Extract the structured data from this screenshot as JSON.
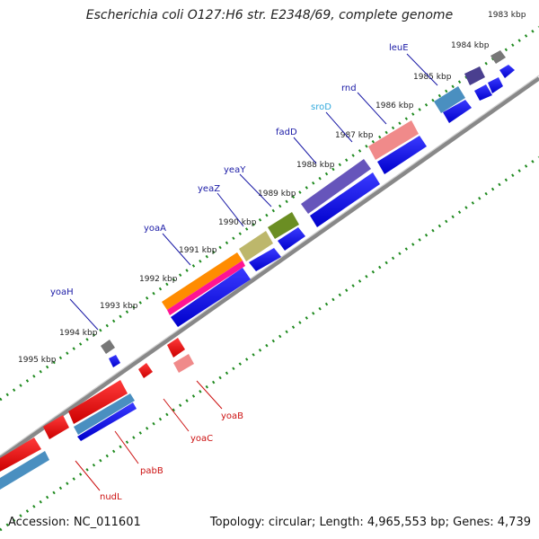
{
  "title": "Escherichia coli O127:H6 str. E2348/69, complete genome",
  "footer": {
    "accession": "Accession: NC_011601",
    "summary": "Topology: circular; Length: 4,965,553 bp; Genes: 4,739"
  },
  "colors": {
    "backbone": "#888888",
    "ticks": "#1f8a1f",
    "forward_label": "#1a1aa6",
    "reverse_label": "#cc1111",
    "srod_label": "#33aadd"
  },
  "kbp_labels": [
    "1983 kbp",
    "1984 kbp",
    "1985 kbp",
    "1986 kbp",
    "1987 kbp",
    "1988 kbp",
    "1989 kbp",
    "1990 kbp",
    "1991 kbp",
    "1992 kbp",
    "1993 kbp",
    "1994 kbp",
    "1995 kbp"
  ],
  "forward_genes": [
    "leuE",
    "rnd",
    "sroD",
    "fadD",
    "yeaY",
    "yeaZ",
    "yoaA",
    "yoaH"
  ],
  "reverse_genes": [
    "yoaB",
    "yoaC",
    "pabB",
    "nudL"
  ]
}
